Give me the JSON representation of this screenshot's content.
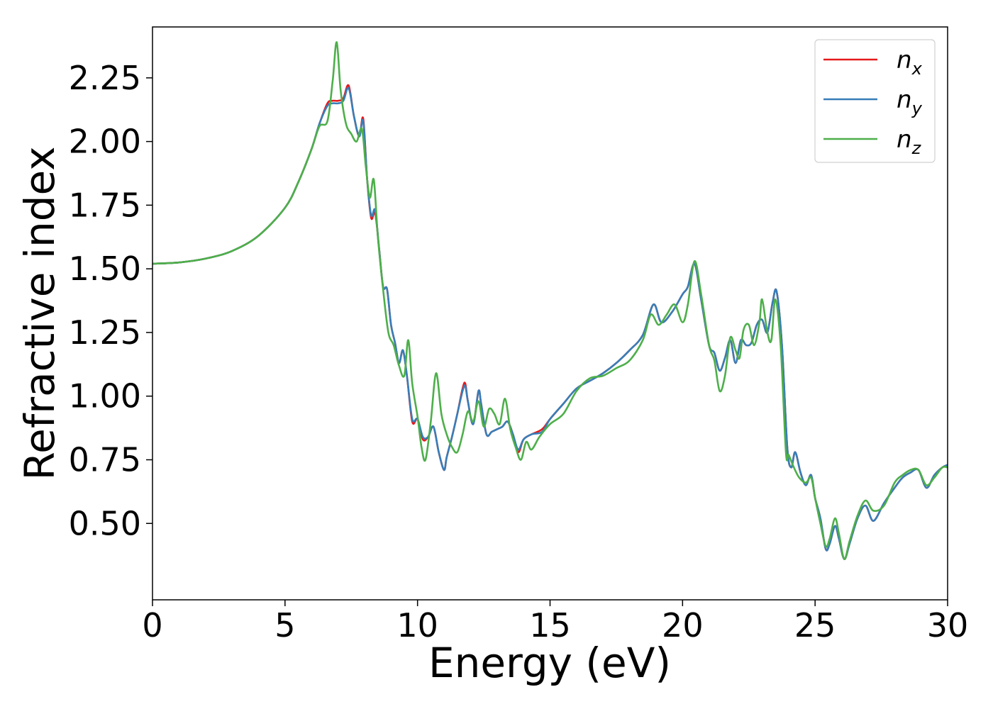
{
  "chart_data": {
    "type": "line",
    "title": "",
    "xlabel": "Energy (eV)",
    "ylabel": "Refractive index",
    "xlim": [
      0,
      30
    ],
    "ylim": [
      0.2,
      2.45
    ],
    "xticks": [
      0,
      5,
      10,
      15,
      20,
      25,
      30
    ],
    "yticks": [
      0.5,
      0.75,
      1.0,
      1.25,
      1.5,
      1.75,
      2.0,
      2.25
    ],
    "ytick_labels": [
      "0.50",
      "0.75",
      "1.00",
      "1.25",
      "1.50",
      "1.75",
      "2.00",
      "2.25"
    ],
    "grid": false,
    "legend_position": "top-right",
    "series": [
      {
        "name": "n",
        "subscript": "x",
        "color": "#e41a1c",
        "x": [
          0,
          1,
          2,
          3,
          4,
          5,
          5.5,
          6,
          6.3,
          6.6,
          6.8,
          7.0,
          7.2,
          7.4,
          7.6,
          7.8,
          7.95,
          8.1,
          8.25,
          8.4,
          8.55,
          8.7,
          8.85,
          9.0,
          9.15,
          9.3,
          9.45,
          9.6,
          9.8,
          10.0,
          10.2,
          10.4,
          10.6,
          10.8,
          11.0,
          11.1,
          11.3,
          11.5,
          11.7,
          11.8,
          11.9,
          12.1,
          12.3,
          12.4,
          12.6,
          12.8,
          13.0,
          13.2,
          13.4,
          13.6,
          13.8,
          14.0,
          14.3,
          14.7,
          15.0,
          15.5,
          16.0,
          16.5,
          17.0,
          17.5,
          18.0,
          18.5,
          18.9,
          19.2,
          19.6,
          20.0,
          20.2,
          20.45,
          20.7,
          21.0,
          21.2,
          21.4,
          21.6,
          21.8,
          22.0,
          22.2,
          22.4,
          22.6,
          22.8,
          23.0,
          23.2,
          23.4,
          23.55,
          23.75,
          23.95,
          24.1,
          24.25,
          24.45,
          24.65,
          24.85,
          25.0,
          25.2,
          25.4,
          25.55,
          25.75,
          25.9,
          26.1,
          26.3,
          26.6,
          26.9,
          27.2,
          27.6,
          28.0,
          28.3,
          28.6,
          28.9,
          29.2,
          29.5,
          29.8,
          30.0
        ],
        "values": [
          1.52,
          1.525,
          1.54,
          1.57,
          1.63,
          1.74,
          1.84,
          1.97,
          2.07,
          2.15,
          2.16,
          2.16,
          2.17,
          2.22,
          2.1,
          2.02,
          2.09,
          1.85,
          1.7,
          1.72,
          1.58,
          1.43,
          1.42,
          1.28,
          1.21,
          1.13,
          1.18,
          1.08,
          0.9,
          0.91,
          0.83,
          0.84,
          0.88,
          0.78,
          0.71,
          0.76,
          0.84,
          0.93,
          1.03,
          1.05,
          0.98,
          0.89,
          1.02,
          0.97,
          0.85,
          0.86,
          0.87,
          0.88,
          0.9,
          0.85,
          0.78,
          0.83,
          0.85,
          0.87,
          0.91,
          0.97,
          1.03,
          1.06,
          1.09,
          1.13,
          1.18,
          1.24,
          1.36,
          1.29,
          1.33,
          1.4,
          1.43,
          1.52,
          1.38,
          1.2,
          1.17,
          1.1,
          1.15,
          1.22,
          1.13,
          1.22,
          1.2,
          1.21,
          1.28,
          1.3,
          1.25,
          1.37,
          1.41,
          1.2,
          0.8,
          0.72,
          0.78,
          0.7,
          0.65,
          0.69,
          0.6,
          0.52,
          0.4,
          0.42,
          0.49,
          0.44,
          0.36,
          0.42,
          0.52,
          0.57,
          0.51,
          0.58,
          0.64,
          0.68,
          0.7,
          0.71,
          0.64,
          0.69,
          0.72,
          0.73
        ]
      },
      {
        "name": "n",
        "subscript": "y",
        "color": "#377eb8",
        "x": [
          0,
          1,
          2,
          3,
          4,
          5,
          5.5,
          6,
          6.3,
          6.6,
          6.8,
          7.0,
          7.2,
          7.4,
          7.6,
          7.8,
          7.95,
          8.1,
          8.25,
          8.4,
          8.55,
          8.7,
          8.85,
          9.0,
          9.15,
          9.3,
          9.45,
          9.6,
          9.8,
          10.0,
          10.2,
          10.4,
          10.6,
          10.8,
          11.0,
          11.1,
          11.3,
          11.5,
          11.7,
          11.8,
          11.9,
          12.1,
          12.3,
          12.4,
          12.6,
          12.8,
          13.0,
          13.2,
          13.4,
          13.6,
          13.8,
          14.0,
          14.3,
          14.7,
          15.0,
          15.5,
          16.0,
          16.5,
          17.0,
          17.5,
          18.0,
          18.5,
          18.9,
          19.2,
          19.6,
          20.0,
          20.2,
          20.45,
          20.7,
          21.0,
          21.2,
          21.4,
          21.6,
          21.8,
          22.0,
          22.2,
          22.4,
          22.6,
          22.8,
          23.0,
          23.2,
          23.4,
          23.55,
          23.75,
          23.95,
          24.1,
          24.25,
          24.45,
          24.65,
          24.85,
          25.0,
          25.2,
          25.4,
          25.55,
          25.75,
          25.9,
          26.1,
          26.3,
          26.6,
          26.9,
          27.2,
          27.6,
          28.0,
          28.3,
          28.6,
          28.9,
          29.2,
          29.5,
          29.8,
          30.0
        ],
        "values": [
          1.52,
          1.525,
          1.54,
          1.57,
          1.63,
          1.74,
          1.84,
          1.97,
          2.07,
          2.14,
          2.15,
          2.15,
          2.16,
          2.21,
          2.1,
          2.02,
          2.08,
          1.85,
          1.71,
          1.73,
          1.58,
          1.43,
          1.42,
          1.28,
          1.21,
          1.13,
          1.18,
          1.08,
          0.91,
          0.91,
          0.84,
          0.84,
          0.88,
          0.78,
          0.71,
          0.76,
          0.84,
          0.93,
          1.02,
          1.04,
          0.98,
          0.89,
          1.02,
          0.97,
          0.85,
          0.86,
          0.87,
          0.88,
          0.9,
          0.85,
          0.79,
          0.83,
          0.85,
          0.86,
          0.91,
          0.97,
          1.03,
          1.06,
          1.09,
          1.13,
          1.18,
          1.24,
          1.36,
          1.29,
          1.33,
          1.4,
          1.43,
          1.52,
          1.38,
          1.2,
          1.17,
          1.1,
          1.15,
          1.22,
          1.13,
          1.22,
          1.2,
          1.21,
          1.28,
          1.3,
          1.25,
          1.37,
          1.41,
          1.2,
          0.8,
          0.72,
          0.78,
          0.7,
          0.65,
          0.69,
          0.6,
          0.52,
          0.4,
          0.42,
          0.49,
          0.44,
          0.36,
          0.42,
          0.52,
          0.57,
          0.51,
          0.58,
          0.64,
          0.68,
          0.7,
          0.71,
          0.64,
          0.69,
          0.72,
          0.73
        ]
      },
      {
        "name": "n",
        "subscript": "z",
        "color": "#4daf4a",
        "x": [
          0,
          1,
          2,
          3,
          4,
          5,
          5.5,
          6,
          6.3,
          6.6,
          6.8,
          6.95,
          7.1,
          7.3,
          7.5,
          7.7,
          7.9,
          8.05,
          8.2,
          8.35,
          8.5,
          8.7,
          8.9,
          9.1,
          9.3,
          9.5,
          9.65,
          9.8,
          10.0,
          10.15,
          10.3,
          10.5,
          10.7,
          10.9,
          11.1,
          11.3,
          11.5,
          11.7,
          11.9,
          12.1,
          12.3,
          12.5,
          12.7,
          12.9,
          13.1,
          13.3,
          13.5,
          13.7,
          13.9,
          14.1,
          14.3,
          14.6,
          15.0,
          15.5,
          16.0,
          16.5,
          17.0,
          17.5,
          18.0,
          18.5,
          18.8,
          19.1,
          19.4,
          19.7,
          20.0,
          20.2,
          20.45,
          20.7,
          21.0,
          21.2,
          21.4,
          21.6,
          21.8,
          22.0,
          22.15,
          22.3,
          22.5,
          22.7,
          22.9,
          23.0,
          23.2,
          23.35,
          23.5,
          23.7,
          23.9,
          24.0,
          24.2,
          24.4,
          24.65,
          24.85,
          25.0,
          25.2,
          25.4,
          25.55,
          25.75,
          25.9,
          26.1,
          26.3,
          26.6,
          26.9,
          27.2,
          27.6,
          28.0,
          28.3,
          28.6,
          28.9,
          29.2,
          29.5,
          29.8,
          30.0
        ],
        "values": [
          1.52,
          1.525,
          1.54,
          1.57,
          1.63,
          1.74,
          1.84,
          1.97,
          2.06,
          2.08,
          2.24,
          2.39,
          2.2,
          2.07,
          2.03,
          2.0,
          2.05,
          1.9,
          1.78,
          1.85,
          1.63,
          1.42,
          1.25,
          1.2,
          1.12,
          1.08,
          1.22,
          1.05,
          0.92,
          0.8,
          0.75,
          0.9,
          1.09,
          0.93,
          0.85,
          0.8,
          0.78,
          0.85,
          0.94,
          0.9,
          0.98,
          0.88,
          0.95,
          0.93,
          0.89,
          0.99,
          0.87,
          0.8,
          0.75,
          0.82,
          0.79,
          0.84,
          0.89,
          0.93,
          1.02,
          1.07,
          1.08,
          1.11,
          1.14,
          1.22,
          1.32,
          1.28,
          1.32,
          1.36,
          1.29,
          1.36,
          1.53,
          1.4,
          1.2,
          1.14,
          1.02,
          1.08,
          1.23,
          1.18,
          1.15,
          1.26,
          1.28,
          1.2,
          1.29,
          1.38,
          1.25,
          1.22,
          1.38,
          1.2,
          0.78,
          0.77,
          0.72,
          0.68,
          0.66,
          0.68,
          0.6,
          0.5,
          0.41,
          0.44,
          0.52,
          0.46,
          0.36,
          0.43,
          0.53,
          0.59,
          0.55,
          0.57,
          0.66,
          0.69,
          0.71,
          0.71,
          0.65,
          0.68,
          0.72,
          0.72
        ]
      }
    ]
  }
}
